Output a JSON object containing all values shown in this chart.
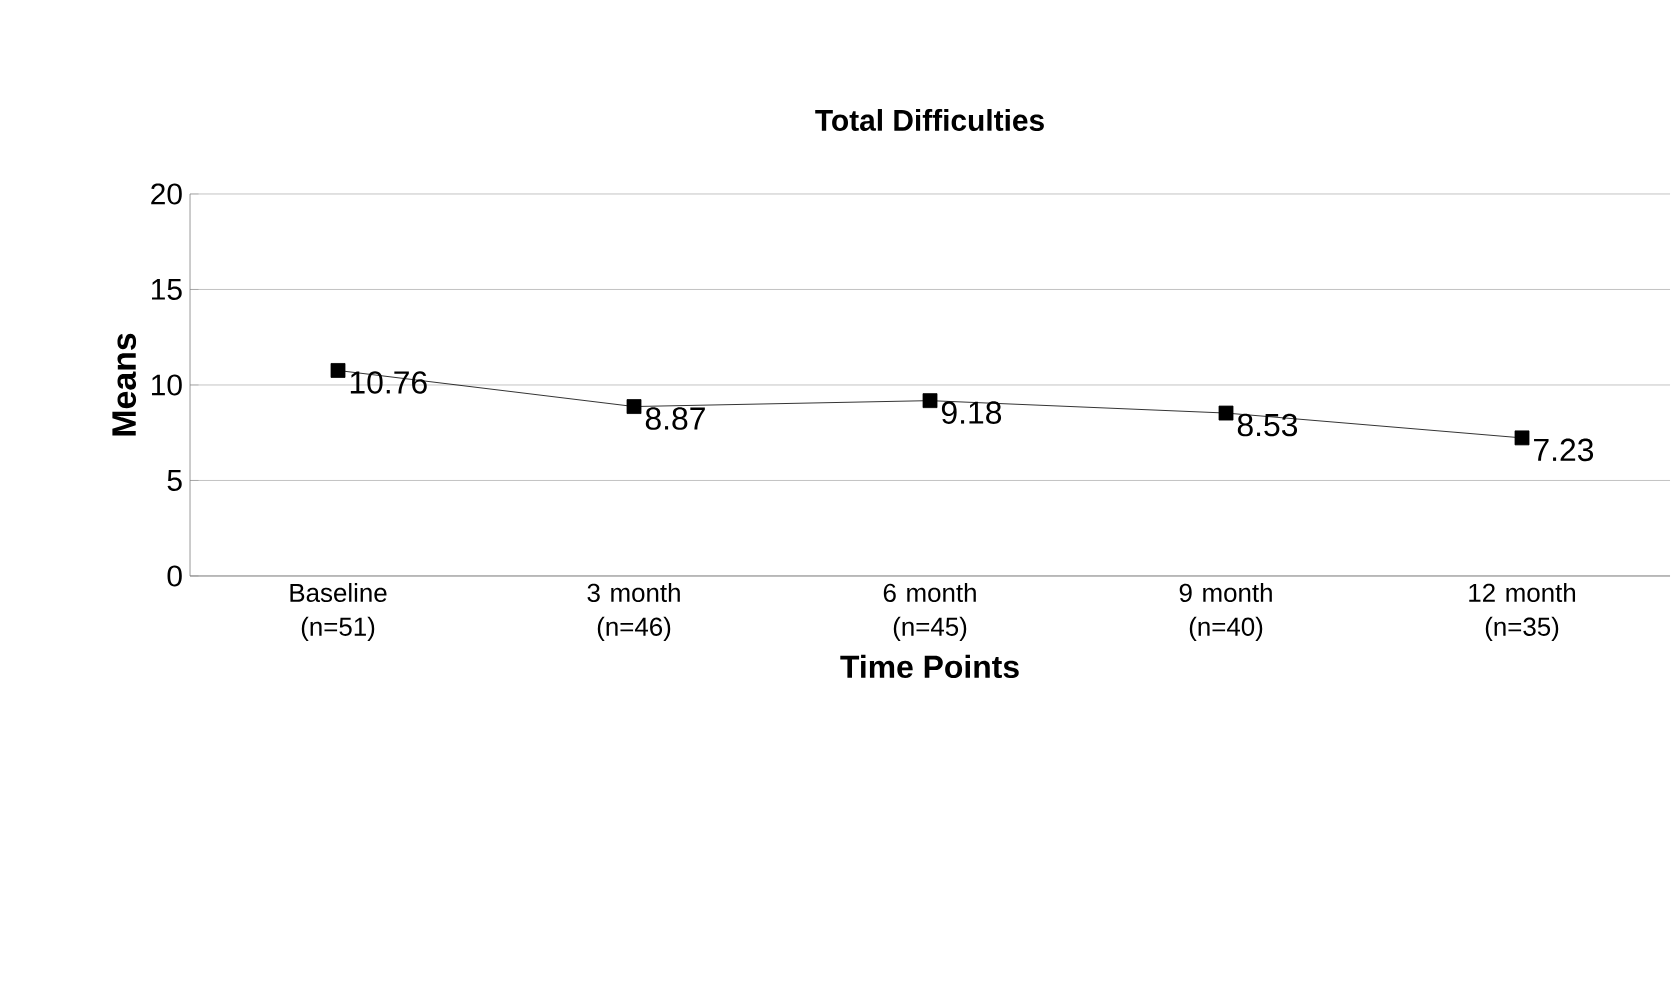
{
  "chart_data": {
    "type": "line",
    "title": "Total Difficulties",
    "xlabel": "Time Points",
    "ylabel": "Means",
    "categories": [
      "Baseline (n=51)",
      "3 month (n=46)",
      "6 month (n=45)",
      "9 month (n=40)",
      "12 month (n=35)"
    ],
    "values": [
      10.76,
      8.87,
      9.18,
      8.53,
      7.23
    ],
    "color": "#000000",
    "ylim": [
      0,
      20
    ],
    "yticks": [
      0,
      5,
      10,
      15,
      20
    ],
    "grid": "y",
    "marker": "square",
    "line_style": "solid",
    "data_labels": true
  }
}
